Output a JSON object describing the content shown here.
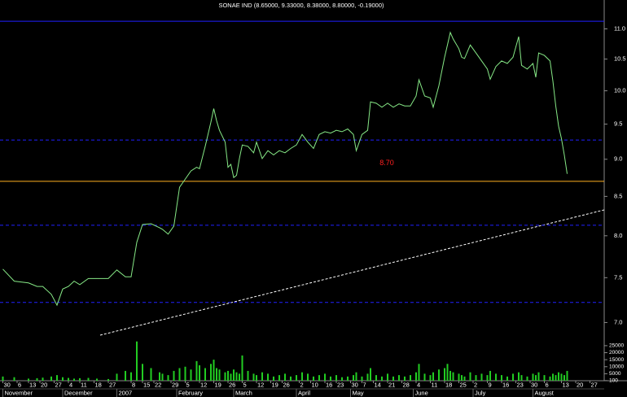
{
  "chart_data": [
    {
      "type": "line",
      "title": "SONAE IND (8.65000, 9.33000, 8.38000, 8.80000, -0.19000)",
      "x": [
        0,
        4,
        9,
        12,
        14,
        17,
        19,
        21,
        23,
        25,
        27,
        30,
        33,
        37,
        40,
        43,
        45,
        47,
        49,
        52,
        55,
        56,
        58,
        60,
        62,
        64,
        66,
        68,
        69,
        71,
        73,
        74,
        75,
        76,
        78,
        79,
        80,
        81,
        82,
        83,
        84,
        86,
        88,
        89,
        91,
        93,
        95,
        97,
        99,
        101,
        103,
        105,
        107,
        109,
        111,
        113,
        115,
        117,
        119,
        121,
        123,
        124,
        126,
        128,
        129,
        131,
        133,
        135,
        137,
        139,
        141,
        143,
        145,
        146,
        148,
        150,
        151,
        153,
        155,
        156,
        157,
        158,
        160,
        161,
        162,
        164,
        166,
        168,
        170,
        171,
        173,
        175,
        177,
        179,
        181,
        182,
        184,
        186,
        187,
        188,
        190,
        192,
        193,
        194,
        195,
        196,
        197,
        198
      ],
      "values": [
        7.6,
        7.46,
        7.44,
        7.4,
        7.4,
        7.31,
        7.19,
        7.37,
        7.4,
        7.46,
        7.42,
        7.49,
        7.49,
        7.49,
        7.59,
        7.51,
        7.51,
        7.92,
        8.14,
        8.15,
        8.1,
        8.08,
        8.02,
        8.12,
        8.62,
        8.73,
        8.84,
        8.89,
        8.87,
        9.18,
        9.53,
        9.73,
        9.55,
        9.41,
        9.24,
        8.89,
        8.93,
        8.75,
        8.78,
        9.01,
        9.2,
        9.18,
        9.09,
        9.24,
        9.01,
        9.12,
        9.06,
        9.12,
        9.09,
        9.15,
        9.2,
        9.35,
        9.24,
        9.15,
        9.35,
        9.39,
        9.37,
        9.41,
        9.39,
        9.43,
        9.35,
        9.12,
        9.35,
        9.41,
        9.83,
        9.81,
        9.75,
        9.81,
        9.75,
        9.8,
        9.77,
        9.77,
        9.92,
        10.17,
        9.92,
        9.89,
        9.75,
        10.08,
        10.53,
        10.73,
        10.94,
        10.83,
        10.67,
        10.53,
        10.51,
        10.73,
        10.6,
        10.47,
        10.34,
        10.18,
        10.38,
        10.47,
        10.43,
        10.53,
        10.87,
        10.4,
        10.34,
        10.43,
        10.21,
        10.6,
        10.56,
        10.47,
        10.15,
        9.77,
        9.47,
        9.29,
        9.06,
        8.8
      ],
      "color": "#86e886",
      "log": true,
      "xlim": [
        -1,
        211
      ],
      "ylim": [
        6.4,
        11.5
      ],
      "yticks": [
        {
          "value": 7,
          "label": "7.0"
        },
        {
          "value": 7.5,
          "label": "7.5"
        },
        {
          "value": 8,
          "label": "8.0"
        },
        {
          "value": 8.5,
          "label": "8.5"
        },
        {
          "value": 9,
          "label": "9.0"
        },
        {
          "value": 9.5,
          "label": "9.5"
        },
        {
          "value": 10,
          "label": "10.0"
        },
        {
          "value": 10.5,
          "label": "10.5"
        },
        {
          "value": 11,
          "label": "11.0"
        }
      ],
      "xticks": [
        {
          "value": 0,
          "label": "30"
        },
        {
          "value": 5,
          "label": "6"
        },
        {
          "value": 9,
          "label": "13"
        },
        {
          "value": 13,
          "label": "20"
        },
        {
          "value": 18,
          "label": "27"
        },
        {
          "value": 23,
          "label": "4"
        },
        {
          "value": 27,
          "label": "11"
        },
        {
          "value": 32,
          "label": "18"
        },
        {
          "value": 37,
          "label": "27"
        },
        {
          "value": 45,
          "label": "8"
        },
        {
          "value": 49,
          "label": "15"
        },
        {
          "value": 53,
          "label": "22"
        },
        {
          "value": 59,
          "label": "29"
        },
        {
          "value": 64,
          "label": "5"
        },
        {
          "value": 69,
          "label": "12"
        },
        {
          "value": 74,
          "label": "19"
        },
        {
          "value": 79,
          "label": "26"
        },
        {
          "value": 84,
          "label": "5"
        },
        {
          "value": 89,
          "label": "12"
        },
        {
          "value": 94,
          "label": "19"
        },
        {
          "value": 98,
          "label": "26"
        },
        {
          "value": 104,
          "label": "2"
        },
        {
          "value": 108,
          "label": "10"
        },
        {
          "value": 113,
          "label": "16"
        },
        {
          "value": 117,
          "label": "23"
        },
        {
          "value": 122,
          "label": "30"
        },
        {
          "value": 126,
          "label": "7"
        },
        {
          "value": 130,
          "label": "14"
        },
        {
          "value": 135,
          "label": "21"
        },
        {
          "value": 140,
          "label": "28"
        },
        {
          "value": 145,
          "label": "4"
        },
        {
          "value": 150,
          "label": "11"
        },
        {
          "value": 155,
          "label": "18"
        },
        {
          "value": 160,
          "label": "25"
        },
        {
          "value": 165,
          "label": "2"
        },
        {
          "value": 170,
          "label": "9"
        },
        {
          "value": 175,
          "label": "16"
        },
        {
          "value": 180,
          "label": "23"
        },
        {
          "value": 185,
          "label": "30"
        },
        {
          "value": 190,
          "label": "6"
        },
        {
          "value": 196,
          "label": "13"
        },
        {
          "value": 201,
          "label": "20"
        },
        {
          "value": 206,
          "label": "27"
        }
      ],
      "month_ticks": [
        {
          "value": 0,
          "label": "November"
        },
        {
          "value": 21,
          "label": "December"
        },
        {
          "value": 40,
          "label": "2007"
        },
        {
          "value": 61,
          "label": "February"
        },
        {
          "value": 81,
          "label": "March"
        },
        {
          "value": 103,
          "label": "April"
        },
        {
          "value": 122,
          "label": "May"
        },
        {
          "value": 144,
          "label": "June"
        },
        {
          "value": 165,
          "label": "July"
        },
        {
          "value": 186,
          "label": "August"
        }
      ],
      "hlines": [
        {
          "value": 11.13,
          "color": "#2020ff",
          "dashed": false
        },
        {
          "value": 9.27,
          "color": "#2020ff",
          "dashed": true
        },
        {
          "value": 8.7,
          "label": "8.70",
          "color": "#ffb020",
          "label_color": "#ff2020",
          "dashed": false
        },
        {
          "value": 8.13,
          "color": "#2020ff",
          "dashed": true
        },
        {
          "value": 7.22,
          "color": "#2020ff",
          "dashed": true
        }
      ]
    },
    {
      "type": "bar",
      "x": [
        0,
        4,
        9,
        12,
        14,
        17,
        19,
        21,
        23,
        25,
        27,
        30,
        33,
        37,
        40,
        43,
        45,
        47,
        49,
        52,
        55,
        56,
        58,
        60,
        62,
        64,
        66,
        68,
        69,
        71,
        73,
        74,
        75,
        76,
        78,
        79,
        80,
        81,
        82,
        83,
        84,
        86,
        88,
        89,
        91,
        93,
        95,
        97,
        99,
        101,
        103,
        105,
        107,
        109,
        111,
        113,
        115,
        117,
        119,
        121,
        123,
        124,
        126,
        128,
        129,
        131,
        133,
        135,
        137,
        139,
        141,
        143,
        145,
        146,
        148,
        150,
        151,
        153,
        155,
        156,
        157,
        158,
        160,
        161,
        162,
        164,
        166,
        168,
        170,
        171,
        173,
        175,
        177,
        179,
        181,
        182,
        184,
        186,
        187,
        188,
        190,
        192,
        193,
        194,
        195,
        196,
        197,
        198
      ],
      "values": [
        3000,
        2500,
        1500,
        1800,
        2200,
        3000,
        4000,
        2500,
        2000,
        1500,
        1800,
        2000,
        1500,
        1200,
        5000,
        7000,
        6000,
        28000,
        12000,
        9000,
        6000,
        5000,
        4000,
        7000,
        9000,
        10000,
        8000,
        14000,
        11000,
        9000,
        12000,
        15000,
        9000,
        8000,
        6000,
        7000,
        5000,
        8000,
        6000,
        5000,
        18000,
        7000,
        5000,
        4000,
        6000,
        5000,
        3000,
        4000,
        5000,
        3000,
        4000,
        6000,
        5000,
        3000,
        4000,
        5000,
        3000,
        4000,
        2500,
        3000,
        4000,
        6000,
        3000,
        5000,
        9000,
        4000,
        3000,
        5000,
        3000,
        4000,
        3000,
        4000,
        6000,
        12000,
        5000,
        4000,
        6000,
        8000,
        9000,
        12000,
        7000,
        6000,
        5000,
        4000,
        3000,
        6000,
        4000,
        5000,
        4000,
        7000,
        5000,
        4000,
        3000,
        5000,
        6000,
        4000,
        3000,
        5000,
        4000,
        6000,
        4000,
        3000,
        5000,
        4000,
        6000,
        5000,
        4000,
        7000
      ],
      "color": "#22cc22",
      "xlim": [
        -1,
        211
      ],
      "ylim": [
        0,
        29000
      ],
      "yticks": [
        25000,
        20000,
        15000,
        10000,
        5000,
        100
      ]
    }
  ]
}
